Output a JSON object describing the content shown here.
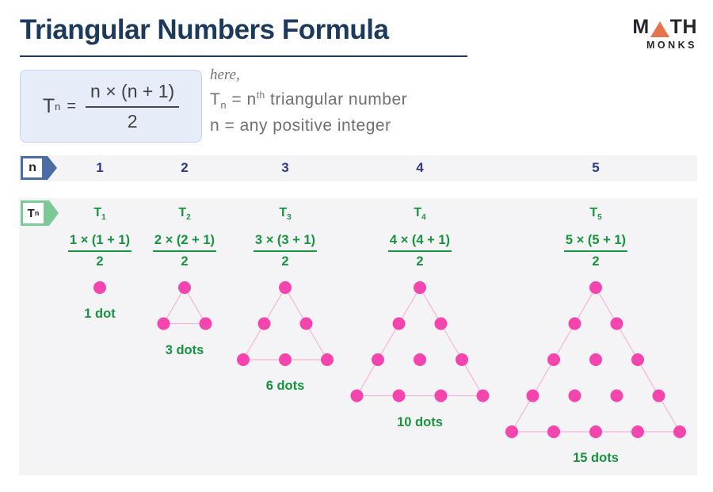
{
  "page": {
    "title": "Triangular Numbers Formula"
  },
  "logo": {
    "math_m": "M",
    "math_th": "TH",
    "monks": "MONKS"
  },
  "formula_box": {
    "t": "T",
    "t_sub": "n",
    "equals": "=",
    "numerator": "n × (n + 1)",
    "denominator": "2"
  },
  "explain": {
    "here": "here,",
    "line1": {
      "t": "T",
      "t_sub": "n",
      "mid": " = n",
      "sup": "th",
      "rest": " triangular number"
    },
    "line2": "n = any positive integer"
  },
  "n_row": {
    "badge": "n"
  },
  "t_row": {
    "badge_base": "T",
    "badge_sub": "n"
  },
  "columns": [
    {
      "n": "1",
      "t_base": "T",
      "t_sub": "1",
      "numerator": "1 × (1 + 1)",
      "denominator": "2",
      "rows": 1,
      "dots": 1,
      "dots_label": "1 dot"
    },
    {
      "n": "2",
      "t_base": "T",
      "t_sub": "2",
      "numerator": "2 × (2 + 1)",
      "denominator": "2",
      "rows": 2,
      "dots": 3,
      "dots_label": "3 dots"
    },
    {
      "n": "3",
      "t_base": "T",
      "t_sub": "3",
      "numerator": "3 × (3 + 1)",
      "denominator": "2",
      "rows": 3,
      "dots": 6,
      "dots_label": "6 dots"
    },
    {
      "n": "4",
      "t_base": "T",
      "t_sub": "4",
      "numerator": "4 × (4 + 1)",
      "denominator": "2",
      "rows": 4,
      "dots": 10,
      "dots_label": "10 dots"
    },
    {
      "n": "5",
      "t_base": "T",
      "t_sub": "5",
      "numerator": "5 × (5 + 1)",
      "denominator": "2",
      "rows": 5,
      "dots": 15,
      "dots_label": "15 dots"
    }
  ],
  "colors": {
    "title_navy": "#1c3b5c",
    "number_blue": "#2e3a8c",
    "green": "#15953d",
    "badge_blue": "#4a6da7",
    "badge_green": "#7cc998",
    "dot_pink": "#f444ae",
    "dot_line_pink": "#f7b2d8",
    "formula_box_bg": "#e7edf8",
    "band_gray": "#f4f4f6",
    "gray_text": "#6f7073",
    "logo_orange": "#e8724c"
  }
}
